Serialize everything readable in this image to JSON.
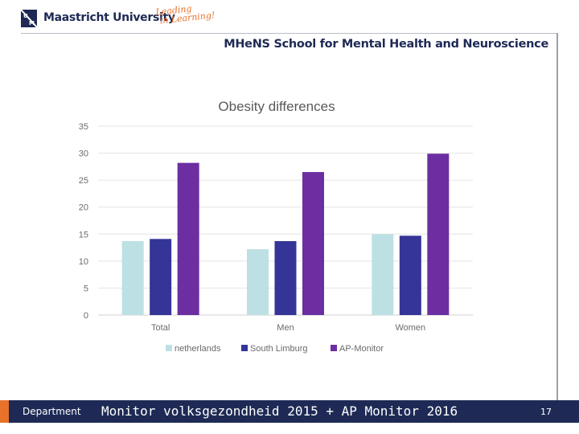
{
  "header": {
    "university": "Maastricht University",
    "tagline_line1": "Leading",
    "tagline_line2": "in Learning!",
    "school": "MHeNS School for Mental Health and Neuroscience"
  },
  "footer": {
    "department": "Department",
    "title": "Monitor volksgezondheid 2015 + AP Monitor 2016",
    "page_number": "17"
  },
  "colors": {
    "navy": "#1e2a55",
    "orange": "#e8722a",
    "netherlands": "#bde0e4",
    "south_limburg": "#343596",
    "ap_monitor": "#6c2ea0"
  },
  "chart_data": {
    "type": "bar",
    "title": "Obesity differences",
    "categories": [
      "Total",
      "Men",
      "Women"
    ],
    "series": [
      {
        "name": "netherlands",
        "values": [
          13.7,
          12.2,
          15.0
        ]
      },
      {
        "name": "South Limburg",
        "values": [
          14.1,
          13.7,
          14.7
        ]
      },
      {
        "name": "AP-Monitor",
        "values": [
          28.2,
          26.5,
          29.9
        ]
      }
    ],
    "ylim": [
      0,
      35
    ],
    "yticks": [
      "0",
      "5",
      "10",
      "15",
      "20",
      "25",
      "30",
      "35"
    ],
    "grid": true,
    "legend": "bottom"
  }
}
